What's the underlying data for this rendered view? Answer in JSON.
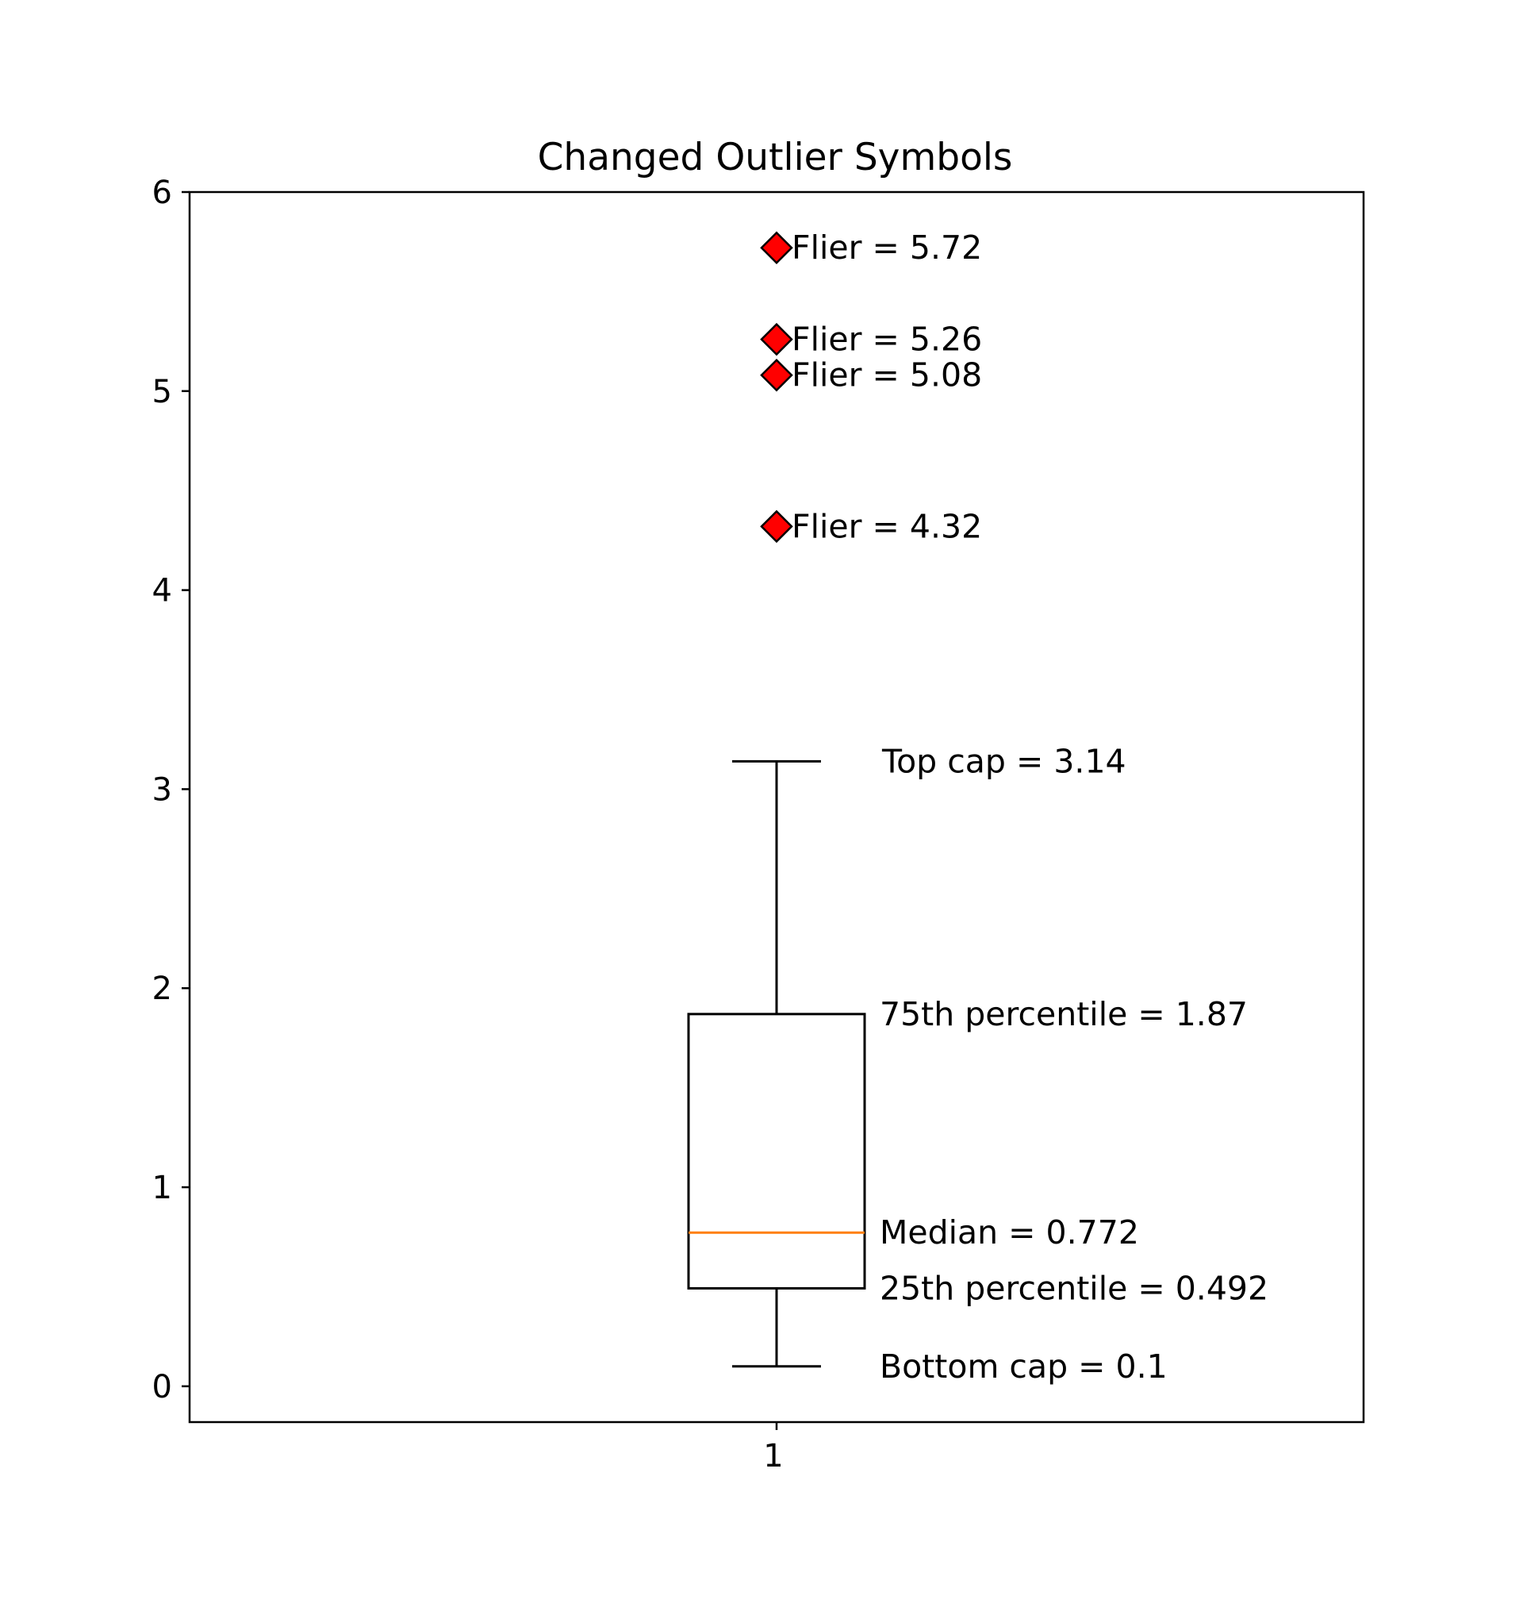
{
  "chart_data": {
    "type": "box",
    "title": "Changed Outlier Symbols",
    "xlabel": "",
    "ylabel": "",
    "categories": [
      "1"
    ],
    "ylim": [
      -0.18,
      6.0
    ],
    "yticks": [
      0,
      1,
      2,
      3,
      4,
      5,
      6
    ],
    "ytick_labels": [
      "0",
      "1",
      "2",
      "3",
      "4",
      "5",
      "6"
    ],
    "grid": false,
    "box": {
      "position": 1,
      "whisker_low": 0.1,
      "q1": 0.492,
      "median": 0.772,
      "q3": 1.87,
      "whisker_high": 3.14,
      "fliers": [
        4.32,
        5.08,
        5.26,
        5.72
      ]
    },
    "annotations": [
      {
        "target": "whisker_high",
        "y": 3.14,
        "text": "Top cap = 3.14"
      },
      {
        "target": "q3",
        "y": 1.87,
        "text": "75th percentile = 1.87"
      },
      {
        "target": "median",
        "y": 0.772,
        "text": "Median = 0.772"
      },
      {
        "target": "q1",
        "y": 0.492,
        "text": "25th percentile = 0.492"
      },
      {
        "target": "whisker_low",
        "y": 0.1,
        "text": "Bottom cap = 0.1"
      },
      {
        "target": "flier",
        "y": 5.72,
        "text": "Flier = 5.72"
      },
      {
        "target": "flier",
        "y": 5.26,
        "text": "Flier = 5.26"
      },
      {
        "target": "flier",
        "y": 5.08,
        "text": "Flier = 5.08"
      },
      {
        "target": "flier",
        "y": 4.32,
        "text": "Flier = 4.32"
      }
    ],
    "colors": {
      "box": "#000000",
      "median": "#ff7f0e",
      "flier_fill": "#ff0000",
      "flier_edge": "#000000"
    },
    "flier_marker": "diamond"
  }
}
